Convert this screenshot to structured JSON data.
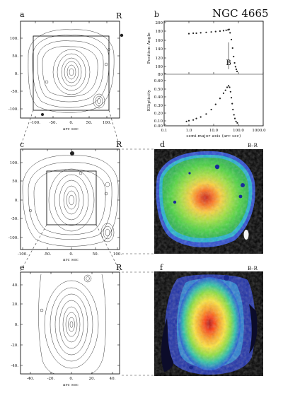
{
  "figure_title": "NGC 4665",
  "panels": {
    "a": {
      "letter": "a",
      "band": "R",
      "xticks": [
        "-100.",
        "-50.",
        "0.",
        "50.",
        "100."
      ],
      "yticks": [
        "100.",
        "50.",
        "0.",
        "-50.",
        "-100."
      ],
      "xlabel": "arc sec"
    },
    "b": {
      "letter": "b",
      "bar_label": "B",
      "top_ylabel": "Position Angle",
      "bottom_ylabel": "Ellipticity",
      "top_yticks": [
        "200",
        "180",
        "160",
        "140",
        "120",
        "100",
        "80"
      ],
      "bottom_yticks": [
        "0.60",
        "0.50",
        "0.40",
        "0.30",
        "0.20",
        "0.10",
        "0.00"
      ],
      "xticks": [
        "0.1",
        "1.0",
        "10.0",
        "100.0",
        "1000.0"
      ],
      "xlabel": "semi-major axis (arc sec)"
    },
    "c": {
      "letter": "c",
      "band": "R",
      "xticks": [
        "-100.",
        "-50.",
        "0.",
        "50.",
        "100."
      ],
      "yticks": [
        "100.",
        "50.",
        "0.",
        "-50.",
        "-100."
      ],
      "xlabel": "arc sec"
    },
    "d": {
      "letter": "d",
      "band": "B–R"
    },
    "e": {
      "letter": "e",
      "band": "R",
      "xticks": [
        "-40.",
        "-20.",
        "0.",
        "20.",
        "40."
      ],
      "yticks": [
        "40.",
        "20.",
        "0.",
        "-20.",
        "-40."
      ],
      "xlabel": "arc sec"
    },
    "f": {
      "letter": "f",
      "band": "B–R"
    }
  },
  "chart_data": {
    "type": "scatter",
    "xscale": "log",
    "xlim": [
      0.1,
      1000
    ],
    "xlabel": "semi-major axis (arc sec)",
    "bar_radius": 40,
    "series": [
      {
        "name": "Position Angle",
        "ylim": [
          80,
          200
        ],
        "x": [
          1,
          1.5,
          2,
          3,
          5,
          8,
          12,
          18,
          25,
          32,
          38,
          42,
          46,
          52,
          58,
          64,
          70,
          76,
          82,
          88
        ],
        "y": [
          174,
          175,
          175,
          176,
          177,
          178,
          179,
          180,
          181,
          182,
          183,
          184,
          176,
          160,
          140,
          120,
          105,
          96,
          90,
          85
        ]
      },
      {
        "name": "Ellipticity",
        "ylim": [
          0,
          0.6
        ],
        "x": [
          0.8,
          1,
          1.5,
          2,
          3,
          5,
          8,
          12,
          18,
          25,
          30,
          35,
          40,
          44,
          48,
          52,
          56,
          60,
          66,
          72,
          80,
          90
        ],
        "y": [
          0.04,
          0.05,
          0.06,
          0.08,
          0.1,
          0.14,
          0.2,
          0.27,
          0.35,
          0.42,
          0.46,
          0.5,
          0.52,
          0.5,
          0.44,
          0.36,
          0.28,
          0.2,
          0.13,
          0.08,
          0.04,
          0.02
        ]
      }
    ]
  }
}
